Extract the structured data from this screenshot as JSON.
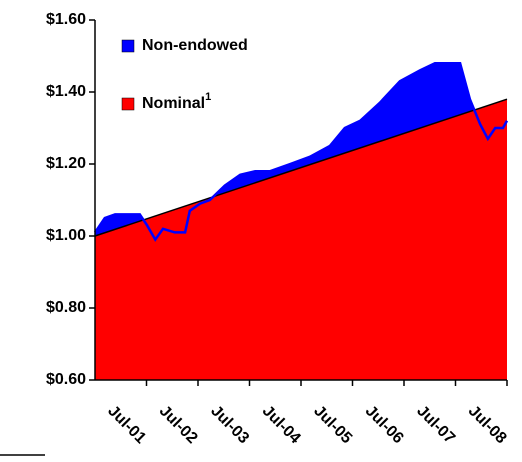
{
  "chart_data": {
    "type": "area",
    "series": [
      {
        "name": "Non-endowed",
        "color": "#0000ff",
        "x": [
          2000.5,
          2000.69,
          2000.89,
          2001.37,
          2001.51,
          2001.67,
          2001.82,
          2002.05,
          2002.25,
          2002.34,
          2002.54,
          2002.73,
          2003.02,
          2003.32,
          2003.61,
          2003.9,
          2004.29,
          2004.67,
          2005.06,
          2005.35,
          2005.65,
          2006.03,
          2006.42,
          2006.81,
          2007.1,
          2007.39,
          2007.59,
          2007.78,
          2007.98,
          2008.13,
          2008.27,
          2008.42,
          2008.5
        ],
        "values": [
          1.01,
          1.05,
          1.06,
          1.06,
          1.03,
          0.99,
          1.02,
          1.01,
          1.01,
          1.07,
          1.09,
          1.1,
          1.14,
          1.17,
          1.18,
          1.18,
          1.2,
          1.22,
          1.25,
          1.3,
          1.32,
          1.37,
          1.43,
          1.46,
          1.48,
          1.48,
          1.48,
          1.38,
          1.31,
          1.27,
          1.3,
          1.3,
          1.32
        ]
      },
      {
        "name": "Nominal",
        "name_superscript": "1",
        "color": "#ff0000",
        "x": [
          2000.5,
          2008.5
        ],
        "values": [
          1.0,
          1.38
        ]
      }
    ],
    "xlim": [
      2000.5,
      2008.5
    ],
    "xticks": [
      {
        "value": 2001.5,
        "label": "Jul-01"
      },
      {
        "value": 2002.5,
        "label": "Jul-02"
      },
      {
        "value": 2003.5,
        "label": "Jul-03"
      },
      {
        "value": 2004.5,
        "label": "Jul-04"
      },
      {
        "value": 2005.5,
        "label": "Jul-05"
      },
      {
        "value": 2006.5,
        "label": "Jul-06"
      },
      {
        "value": 2007.5,
        "label": "Jul-07"
      },
      {
        "value": 2008.5,
        "label": "Jul-08"
      }
    ],
    "ylim": [
      0.6,
      1.6
    ],
    "yticks": [
      {
        "value": 0.6,
        "label": "$0.60"
      },
      {
        "value": 0.8,
        "label": "$0.80"
      },
      {
        "value": 1.0,
        "label": "$1.00"
      },
      {
        "value": 1.2,
        "label": "$1.20"
      },
      {
        "value": 1.4,
        "label": "$1.40"
      },
      {
        "value": 1.6,
        "label": "$1.60"
      }
    ],
    "legend": "upper left"
  }
}
